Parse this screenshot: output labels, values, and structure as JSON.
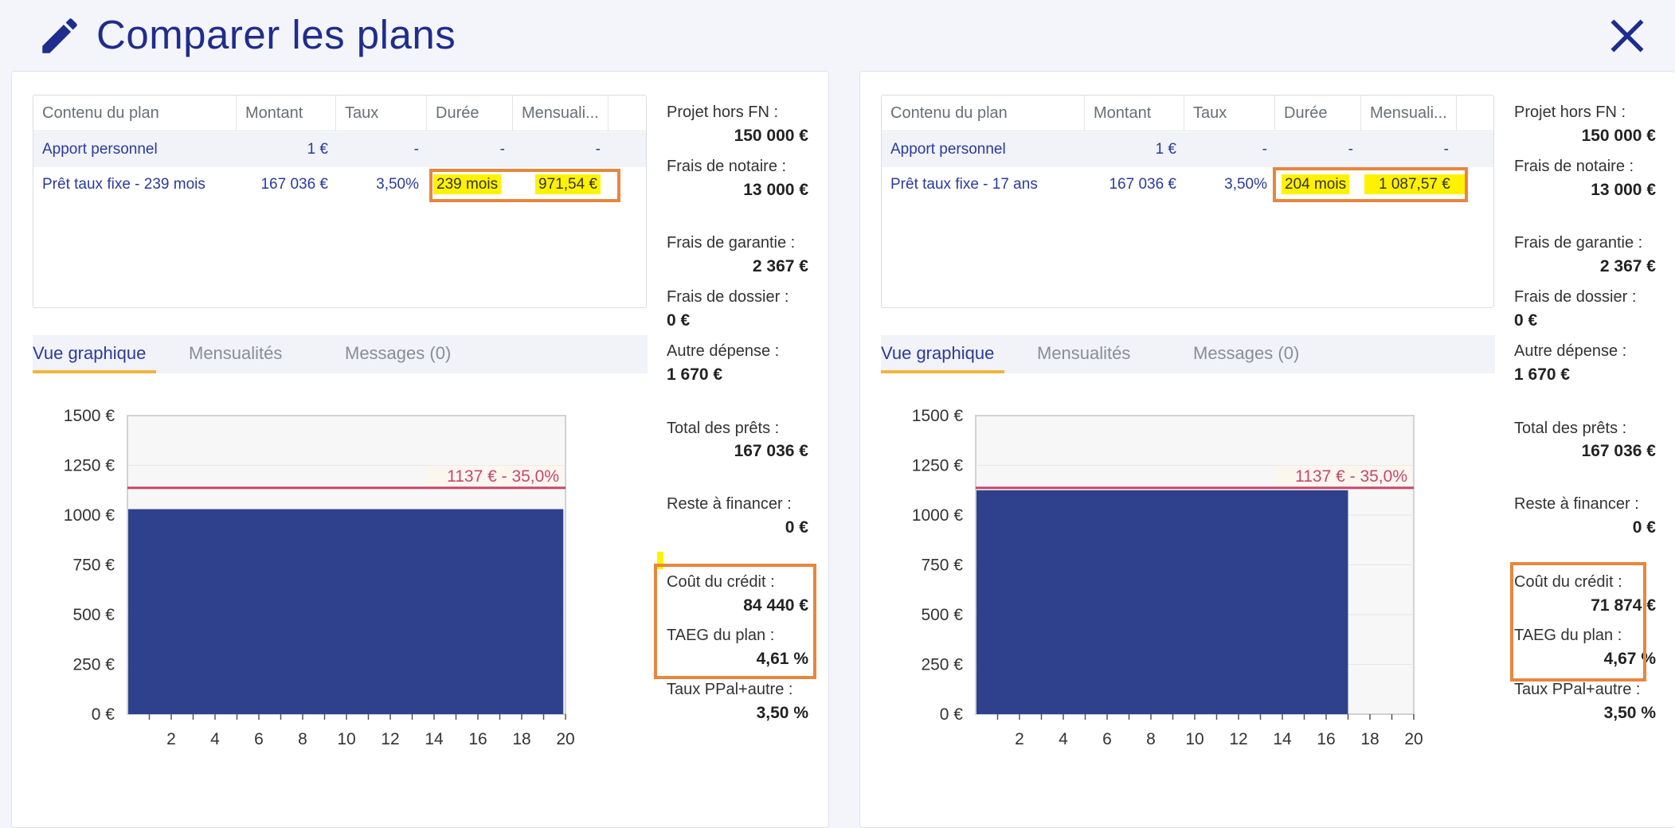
{
  "header": {
    "title": "Comparer les plans",
    "edit_icon": "pencil-icon",
    "close_icon": "close-icon"
  },
  "colors": {
    "primary": "#1f2d8c",
    "bar": "#2f418c",
    "threshold": "#c8476a",
    "highlight": "#fff200",
    "annotation": "#e8863d",
    "tab_active": "#f0b43c"
  },
  "plans": [
    {
      "table": {
        "headers": [
          "Contenu du plan",
          "Montant",
          "Taux",
          "Durée",
          "Mensuali..."
        ],
        "rows": [
          [
            "Apport personnel",
            "1 €",
            "-",
            "-",
            "-"
          ],
          [
            "Prêt taux fixe - 239 mois",
            "167 036 €",
            "3,50%",
            "239 mois",
            "971,54 €"
          ]
        ]
      },
      "tabs": [
        "Vue graphique",
        "Mensualités",
        "Messages (0)"
      ],
      "summary": {
        "projet_label": "Projet hors FN :",
        "projet_value": "150 000 €",
        "notaire_label": "Frais de notaire :",
        "notaire_value": "13 000 €",
        "garantie_label": "Frais de garantie :",
        "garantie_value": "2 367 €",
        "dossier_label": "Frais de dossier :",
        "dossier_value": "0 €",
        "autre_label": "Autre dépense :",
        "autre_value": "1 670 €",
        "total_label": "Total des prêts :",
        "total_value": "167 036 €",
        "reste_label": "Reste à financer :",
        "reste_value": "0 €",
        "cout_label": "Coût du crédit :",
        "cout_value": "84 440 €",
        "taeg_label": "TAEG du plan :",
        "taeg_value": "4,61 %",
        "taux_label": "Taux PPal+autre :",
        "taux_value": "3,50 %"
      },
      "chart_data": {
        "type": "bar",
        "x_ticks": [
          "2",
          "4",
          "6",
          "8",
          "10",
          "12",
          "14",
          "16",
          "18",
          "20"
        ],
        "y_ticks": [
          "1500 €",
          "1250 €",
          "1000 €",
          "750 €",
          "500 €",
          "250 €",
          "0 €"
        ],
        "xlim": [
          0,
          20
        ],
        "ylim": [
          0,
          1500
        ],
        "series": [
          {
            "x_start": 0,
            "x_end": 19.9,
            "value": 1030
          }
        ],
        "threshold": {
          "value": 1137,
          "label": "1137 € - 35,0%"
        }
      }
    },
    {
      "table": {
        "headers": [
          "Contenu du plan",
          "Montant",
          "Taux",
          "Durée",
          "Mensuali..."
        ],
        "rows": [
          [
            "Apport personnel",
            "1 €",
            "-",
            "-",
            "-"
          ],
          [
            "Prêt taux fixe - 17 ans",
            "167 036 €",
            "3,50%",
            "204 mois",
            "1 087,57 €"
          ]
        ]
      },
      "tabs": [
        "Vue graphique",
        "Mensualités",
        "Messages (0)"
      ],
      "summary": {
        "projet_label": "Projet hors FN :",
        "projet_value": "150 000 €",
        "notaire_label": "Frais de notaire :",
        "notaire_value": "13 000 €",
        "garantie_label": "Frais de garantie :",
        "garantie_value": "2 367 €",
        "dossier_label": "Frais de dossier :",
        "dossier_value": "0 €",
        "autre_label": "Autre dépense :",
        "autre_value": "1 670 €",
        "total_label": "Total des prêts :",
        "total_value": "167 036 €",
        "reste_label": "Reste à financer :",
        "reste_value": "0 €",
        "cout_label": "Coût du crédit :",
        "cout_value": "71 874 €",
        "taeg_label": "TAEG du plan :",
        "taeg_value": "4,67 %",
        "taux_label": "Taux PPal+autre :",
        "taux_value": "3,50 %"
      },
      "chart_data": {
        "type": "bar",
        "x_ticks": [
          "2",
          "4",
          "6",
          "8",
          "10",
          "12",
          "14",
          "16",
          "18",
          "20"
        ],
        "y_ticks": [
          "1500 €",
          "1250 €",
          "1000 €",
          "750 €",
          "500 €",
          "250 €",
          "0 €"
        ],
        "xlim": [
          0,
          20
        ],
        "ylim": [
          0,
          1500
        ],
        "series": [
          {
            "x_start": 0,
            "x_end": 17,
            "value": 1125
          }
        ],
        "threshold": {
          "value": 1137,
          "label": "1137 € - 35,0%"
        }
      }
    }
  ]
}
